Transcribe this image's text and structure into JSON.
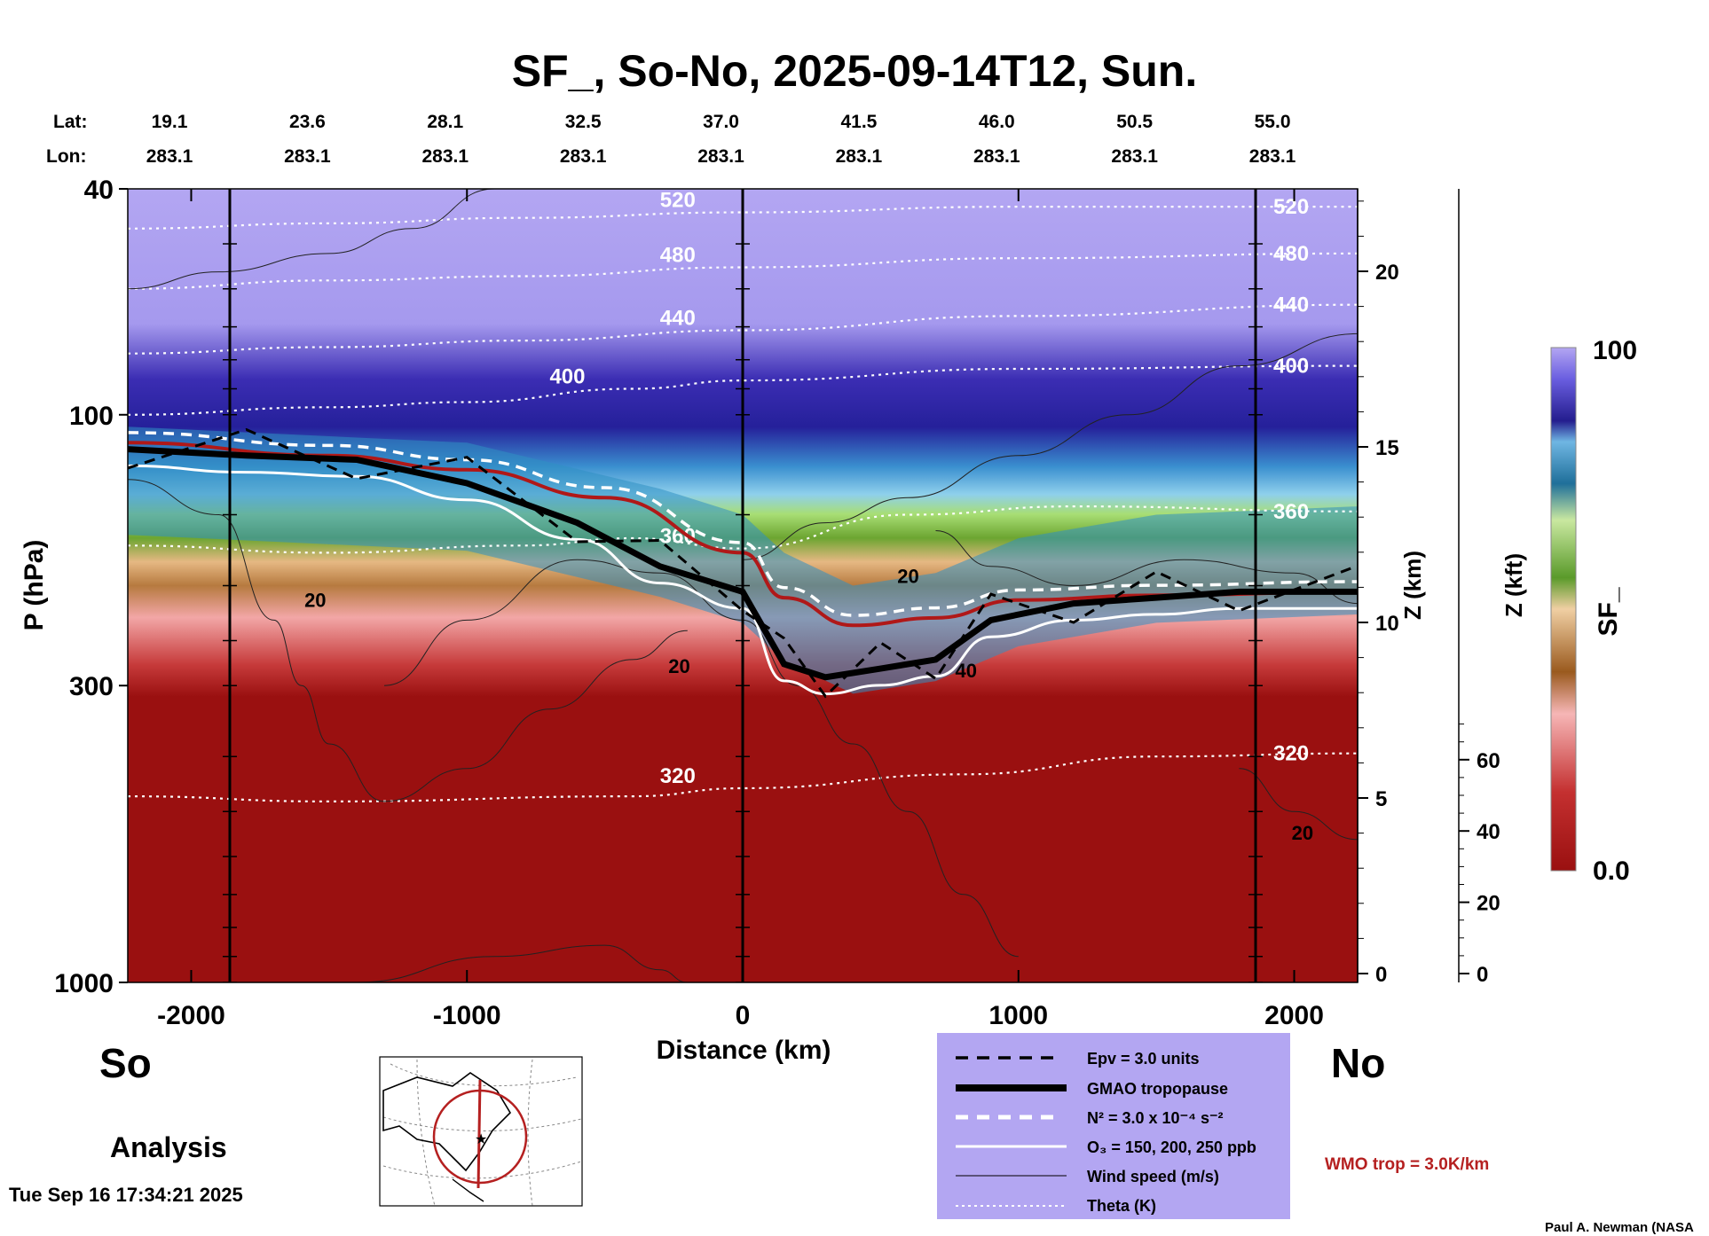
{
  "title": "SF_, So-No, 2025-09-14T12, Sun.",
  "top_axes": {
    "lat_label": "Lat:",
    "lon_label": "Lon:",
    "lat": [
      "19.1",
      "23.6",
      "28.1",
      "32.5",
      "37.0",
      "41.5",
      "46.0",
      "50.5",
      "55.0"
    ],
    "lon": [
      "283.1",
      "283.1",
      "283.1",
      "283.1",
      "283.1",
      "283.1",
      "283.1",
      "283.1",
      "283.1"
    ]
  },
  "left_labels": {
    "so": "So",
    "no": "No",
    "analysis": "Analysis"
  },
  "timestamp": "Tue Sep 16 17:34:21 2025",
  "credit": "Paul A. Newman (NASA",
  "wmo_label": "WMO trop = 3.0K/km",
  "legend": {
    "items": [
      {
        "label": "Epv = 3.0 units",
        "style": "dashed-black"
      },
      {
        "label": "GMAO tropopause",
        "style": "thick-black"
      },
      {
        "label": "N² = 3.0 x 10⁻⁴ s⁻²",
        "style": "dashed-white"
      },
      {
        "label": "O₃ = 150, 200, 250 ppb",
        "style": "solid-white"
      },
      {
        "label": "Wind speed (m/s)",
        "style": "thin-black"
      },
      {
        "label": "Theta (K)",
        "style": "dotted-white"
      }
    ],
    "background": "#b3a6f2"
  },
  "colorbar": {
    "label": "SF_",
    "max_label": "100",
    "min_label": "0.0"
  },
  "chart_data": {
    "type": "heatmap",
    "title": "SF_, So-No, 2025-09-14T12, Sun.",
    "xlabel": "Distance (km)",
    "ylabel": "P (hPa)",
    "right_axis1_label": "Z (km)",
    "right_axis2_label": "Z (kft)",
    "x_range": [
      -2230,
      2230
    ],
    "x_ticks": [
      -2000,
      -1000,
      0,
      1000,
      2000
    ],
    "x_tick_labels": [
      "-2000",
      "-1000",
      "0",
      "1000",
      "2000"
    ],
    "y_scale": "log",
    "y_range": [
      1000,
      40
    ],
    "y_ticks": [
      40,
      100,
      300,
      1000
    ],
    "y_tick_labels": [
      "40",
      "100",
      "300",
      "1000"
    ],
    "z_km_ticks": [
      0,
      5,
      10,
      15,
      20
    ],
    "z_km_tick_labels": [
      "0",
      "5",
      "10",
      "15",
      "20"
    ],
    "z_kft_ticks": [
      0,
      20,
      40,
      60
    ],
    "z_kft_tick_labels": [
      "0",
      "20",
      "40",
      "60"
    ],
    "colorbar_range": [
      0.0,
      100
    ],
    "vertical_profile_lines_km": [
      -1860,
      0,
      1860
    ],
    "theta_isentropes": [
      {
        "theta": 320,
        "label": "320",
        "points": [
          [
            -2230,
            470
          ],
          [
            -1500,
            480
          ],
          [
            -400,
            470
          ],
          [
            0,
            455
          ],
          [
            800,
            430
          ],
          [
            1500,
            400
          ],
          [
            2230,
            395
          ]
        ]
      },
      {
        "theta": 360,
        "label": "360",
        "points": [
          [
            -2230,
            170
          ],
          [
            -1500,
            175
          ],
          [
            -800,
            170
          ],
          [
            -400,
            165
          ],
          [
            0,
            172
          ],
          [
            600,
            150
          ],
          [
            1200,
            145
          ],
          [
            2230,
            148
          ]
        ]
      },
      {
        "theta": 400,
        "label": "400",
        "points": [
          [
            -2230,
            100
          ],
          [
            -1500,
            97
          ],
          [
            -1000,
            95
          ],
          [
            -400,
            90
          ],
          [
            0,
            87
          ],
          [
            1000,
            83
          ],
          [
            2230,
            82
          ]
        ]
      },
      {
        "theta": 440,
        "label": "440",
        "points": [
          [
            -2230,
            78
          ],
          [
            -1500,
            76
          ],
          [
            -800,
            74
          ],
          [
            0,
            71
          ],
          [
            1000,
            67
          ],
          [
            2230,
            64
          ]
        ]
      },
      {
        "theta": 480,
        "label": "480",
        "points": [
          [
            -2230,
            60
          ],
          [
            -1500,
            58
          ],
          [
            -800,
            57
          ],
          [
            0,
            55
          ],
          [
            1000,
            53
          ],
          [
            2230,
            52
          ]
        ]
      },
      {
        "theta": 520,
        "label": "520",
        "points": [
          [
            -2230,
            47
          ],
          [
            -1500,
            46
          ],
          [
            -800,
            45
          ],
          [
            0,
            44
          ],
          [
            1000,
            43
          ],
          [
            2230,
            43
          ]
        ]
      }
    ],
    "gmao_tropopause": [
      [
        -2230,
        115
      ],
      [
        -1800,
        118
      ],
      [
        -1400,
        120
      ],
      [
        -1000,
        132
      ],
      [
        -600,
        155
      ],
      [
        -300,
        185
      ],
      [
        0,
        205
      ],
      [
        150,
        275
      ],
      [
        300,
        290
      ],
      [
        500,
        280
      ],
      [
        700,
        270
      ],
      [
        900,
        230
      ],
      [
        1200,
        215
      ],
      [
        1500,
        210
      ],
      [
        1800,
        205
      ],
      [
        2230,
        205
      ]
    ],
    "wmo_tropopause": [
      [
        -2230,
        112
      ],
      [
        -1500,
        118
      ],
      [
        -1000,
        125
      ],
      [
        -500,
        140
      ],
      [
        0,
        175
      ],
      [
        150,
        210
      ],
      [
        400,
        235
      ],
      [
        700,
        228
      ],
      [
        1000,
        212
      ],
      [
        1500,
        208
      ],
      [
        2230,
        205
      ]
    ],
    "wind_speed_labels": [
      {
        "x": -1550,
        "p": 218,
        "label": "20"
      },
      {
        "x": -230,
        "p": 285,
        "label": "20"
      },
      {
        "x": 600,
        "p": 198,
        "label": "20"
      },
      {
        "x": 810,
        "p": 290,
        "label": "40"
      },
      {
        "x": 2030,
        "p": 560,
        "label": "20"
      }
    ]
  }
}
